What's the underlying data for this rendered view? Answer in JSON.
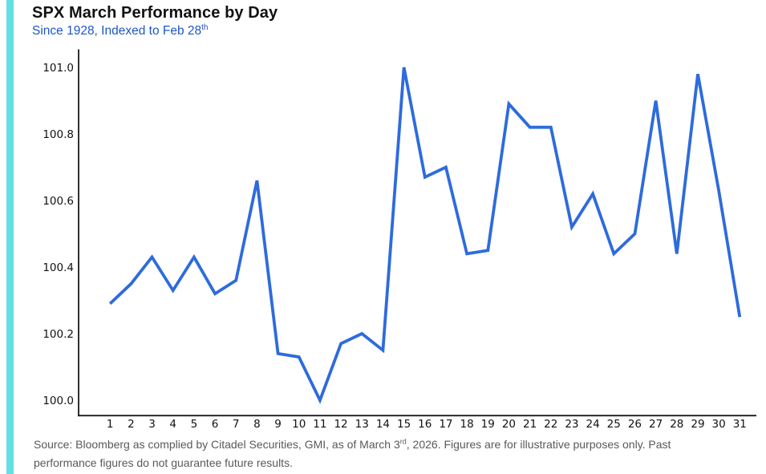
{
  "header": {
    "title": "SPX March Performance by Day",
    "subtitle_main": "Since 1928, Indexed to Feb 28",
    "subtitle_sup": "th"
  },
  "footer": {
    "source_part1": "Source: Bloomberg as complied by Citadel Securities, GMI, as of March 3",
    "source_sup": "rd",
    "source_part2": ", 2026. Figures are for illustrative purposes only. Past",
    "source_line2": "performance figures do not guarantee future results."
  },
  "colors": {
    "accent_bar": "#63E0E6",
    "line": "#2E6BDC",
    "subtitle": "#1E56C8",
    "axis": "#1a1a1a",
    "tick_label": "#111111",
    "source_text": "#595959"
  },
  "chart_data": {
    "type": "line",
    "title": "SPX March Performance by Day",
    "subtitle": "Since 1928, Indexed to Feb 28th",
    "xlabel": "",
    "ylabel": "",
    "grid": false,
    "legend": false,
    "x": [
      1,
      2,
      3,
      4,
      5,
      6,
      7,
      8,
      9,
      10,
      11,
      12,
      13,
      14,
      15,
      16,
      17,
      18,
      19,
      20,
      21,
      22,
      23,
      24,
      25,
      26,
      27,
      28,
      29,
      30,
      31
    ],
    "values": [
      100.29,
      100.35,
      100.43,
      100.33,
      100.43,
      100.32,
      100.36,
      100.66,
      100.14,
      100.13,
      100.0,
      100.17,
      100.2,
      100.15,
      101.0,
      100.67,
      100.7,
      100.44,
      100.45,
      100.89,
      100.82,
      100.82,
      100.52,
      100.62,
      100.44,
      100.5,
      100.9,
      100.44,
      100.98,
      100.63,
      100.25
    ],
    "x_tick_labels": [
      "1",
      "2",
      "3",
      "4",
      "5",
      "6",
      "7",
      "8",
      "9",
      "10",
      "11",
      "12",
      "13",
      "14",
      "15",
      "16",
      "17",
      "18",
      "19",
      "20",
      "21",
      "22",
      "23",
      "24",
      "25",
      "26",
      "27",
      "28",
      "29",
      "30",
      "31"
    ],
    "y_ticks": [
      100.0,
      100.2,
      100.4,
      100.6,
      100.8,
      101.0
    ],
    "y_tick_labels": [
      "100.0",
      "100.2",
      "100.4",
      "100.6",
      "100.8",
      "101.0"
    ],
    "ylim": [
      99.95,
      101.05
    ],
    "xlim": [
      -0.5,
      31.8
    ]
  }
}
